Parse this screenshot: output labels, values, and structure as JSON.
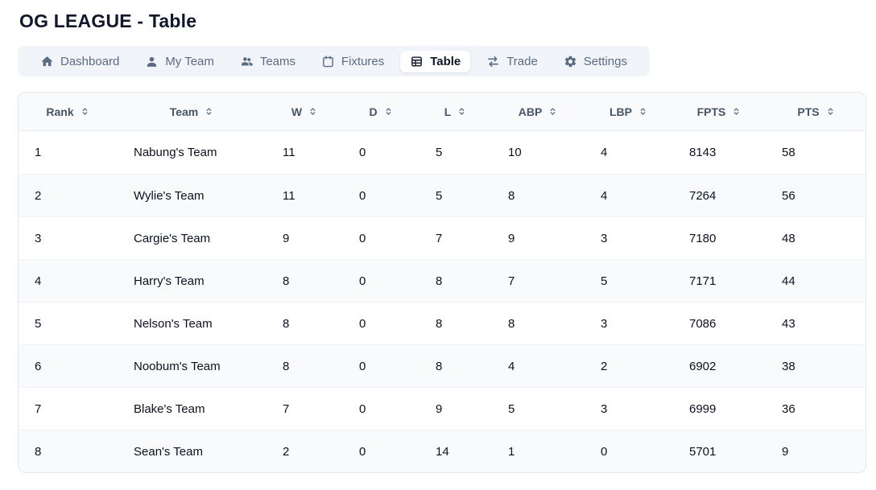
{
  "page": {
    "title": "OG LEAGUE - Table"
  },
  "nav": {
    "tabs": [
      {
        "id": "dashboard",
        "label": "Dashboard",
        "icon": "home-icon",
        "active": false
      },
      {
        "id": "my-team",
        "label": "My Team",
        "icon": "user-icon",
        "active": false
      },
      {
        "id": "teams",
        "label": "Teams",
        "icon": "users-icon",
        "active": false
      },
      {
        "id": "fixtures",
        "label": "Fixtures",
        "icon": "calendar-icon",
        "active": false
      },
      {
        "id": "table",
        "label": "Table",
        "icon": "table-icon",
        "active": true
      },
      {
        "id": "trade",
        "label": "Trade",
        "icon": "trade-arrows-icon",
        "active": false
      },
      {
        "id": "settings",
        "label": "Settings",
        "icon": "gear-icon",
        "active": false
      }
    ]
  },
  "league_table": {
    "columns": [
      {
        "key": "rank",
        "label": "Rank",
        "sortable": true
      },
      {
        "key": "team",
        "label": "Team",
        "sortable": true
      },
      {
        "key": "w",
        "label": "W",
        "sortable": true
      },
      {
        "key": "d",
        "label": "D",
        "sortable": true
      },
      {
        "key": "l",
        "label": "L",
        "sortable": true
      },
      {
        "key": "abp",
        "label": "ABP",
        "sortable": true
      },
      {
        "key": "lbp",
        "label": "LBP",
        "sortable": true
      },
      {
        "key": "fpts",
        "label": "FPTS",
        "sortable": true
      },
      {
        "key": "pts",
        "label": "PTS",
        "sortable": true
      }
    ],
    "rows": [
      {
        "rank": "1",
        "team": "Nabung's Team",
        "w": "11",
        "d": "0",
        "l": "5",
        "abp": "10",
        "lbp": "4",
        "fpts": "8143",
        "pts": "58"
      },
      {
        "rank": "2",
        "team": "Wylie's Team",
        "w": "11",
        "d": "0",
        "l": "5",
        "abp": "8",
        "lbp": "4",
        "fpts": "7264",
        "pts": "56"
      },
      {
        "rank": "3",
        "team": "Cargie's Team",
        "w": "9",
        "d": "0",
        "l": "7",
        "abp": "9",
        "lbp": "3",
        "fpts": "7180",
        "pts": "48"
      },
      {
        "rank": "4",
        "team": "Harry's Team",
        "w": "8",
        "d": "0",
        "l": "8",
        "abp": "7",
        "lbp": "5",
        "fpts": "7171",
        "pts": "44"
      },
      {
        "rank": "5",
        "team": "Nelson's Team",
        "w": "8",
        "d": "0",
        "l": "8",
        "abp": "8",
        "lbp": "3",
        "fpts": "7086",
        "pts": "43"
      },
      {
        "rank": "6",
        "team": "Noobum's Team",
        "w": "8",
        "d": "0",
        "l": "8",
        "abp": "4",
        "lbp": "2",
        "fpts": "6902",
        "pts": "38"
      },
      {
        "rank": "7",
        "team": "Blake's Team",
        "w": "7",
        "d": "0",
        "l": "9",
        "abp": "5",
        "lbp": "3",
        "fpts": "6999",
        "pts": "36"
      },
      {
        "rank": "8",
        "team": "Sean's Team",
        "w": "2",
        "d": "0",
        "l": "14",
        "abp": "1",
        "lbp": "0",
        "fpts": "5701",
        "pts": "9"
      }
    ]
  },
  "colors": {
    "title_text": "#12172b",
    "nav_bg": "#f1f5f9",
    "nav_text": "#5b6b84",
    "active_tab_bg": "#ffffff",
    "active_tab_text": "#111827",
    "table_border": "#e2e8f0",
    "header_bg": "#f8fafc",
    "header_text": "#475569",
    "cell_text": "#0b1120",
    "row_alt_bg": "#f8fafc"
  }
}
